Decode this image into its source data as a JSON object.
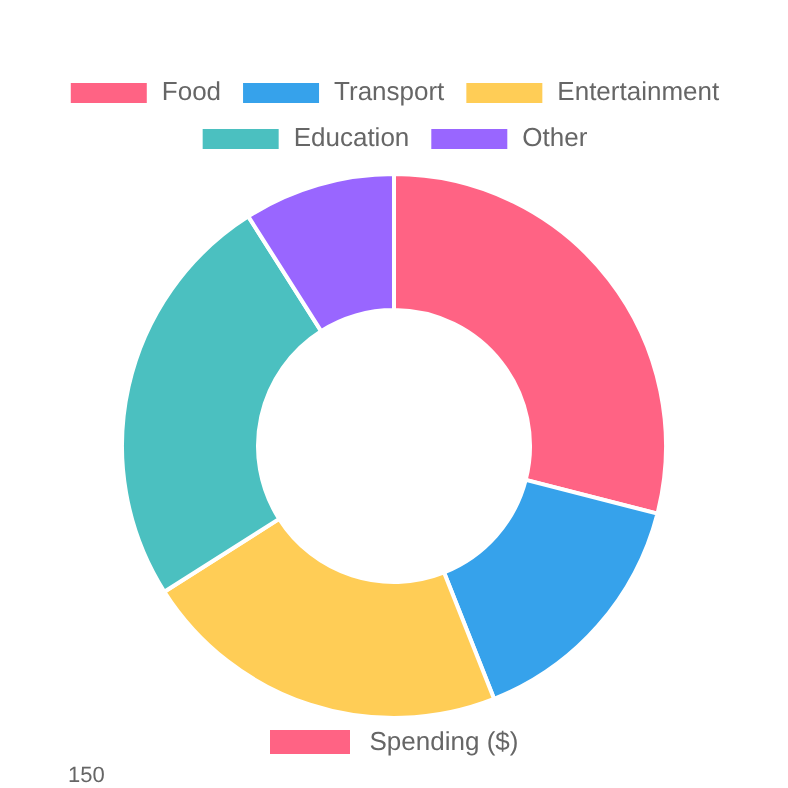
{
  "chart_data": [
    {
      "type": "donut",
      "categories": [
        "Food",
        "Transport",
        "Entertainment",
        "Education",
        "Other"
      ],
      "values": [
        29,
        15,
        22,
        25,
        9
      ],
      "colors": [
        "#ff6384",
        "#36a2eb",
        "#ffcd56",
        "#4bc0c0",
        "#9966ff"
      ],
      "legend": "top"
    },
    {
      "type": "other",
      "annotations": [
        "Spending ($)",
        "150"
      ]
    }
  ]
}
